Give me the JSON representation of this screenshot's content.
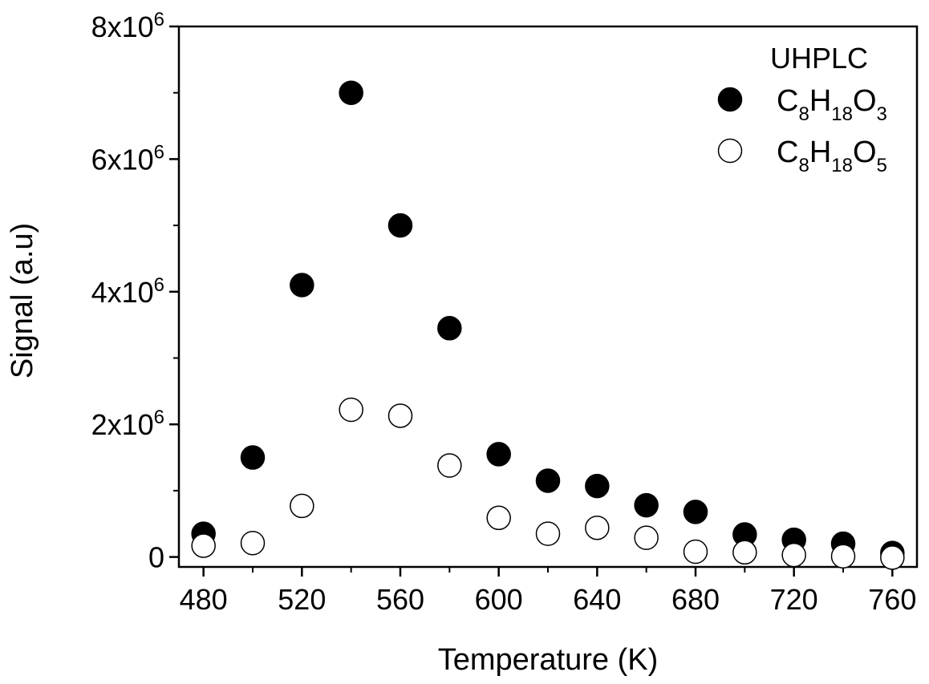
{
  "chart_data": {
    "type": "scatter",
    "xlabel": "Temperature (K)",
    "ylabel": "Signal (a.u)",
    "xlim": [
      470,
      770
    ],
    "ylim": [
      -150000,
      8000000
    ],
    "x_ticks": [
      480,
      520,
      560,
      600,
      640,
      680,
      720,
      760
    ],
    "y_ticks": [
      {
        "value": 0,
        "label": "0"
      },
      {
        "value": 2000000,
        "label": "2x10",
        "exp": "6"
      },
      {
        "value": 4000000,
        "label": "4x10",
        "exp": "6"
      },
      {
        "value": 6000000,
        "label": "6x10",
        "exp": "6"
      },
      {
        "value": 8000000,
        "label": "8x10",
        "exp": "6"
      }
    ],
    "legend": {
      "title": "UHPLC",
      "position": "top-right",
      "entries": [
        {
          "parts": [
            [
              "C",
              "normal"
            ],
            [
              "8",
              "sub"
            ],
            [
              "H",
              "normal"
            ],
            [
              "18",
              "sub"
            ],
            [
              "O",
              "normal"
            ],
            [
              "3",
              "sub"
            ]
          ],
          "marker": "filled"
        },
        {
          "parts": [
            [
              "C",
              "normal"
            ],
            [
              "8",
              "sub"
            ],
            [
              "H",
              "normal"
            ],
            [
              "18",
              "sub"
            ],
            [
              "O",
              "normal"
            ],
            [
              "5",
              "sub"
            ]
          ],
          "marker": "open"
        }
      ]
    },
    "series": [
      {
        "name": "C8H18O3",
        "marker": "filled",
        "color": "#000000",
        "x": [
          480,
          500,
          520,
          540,
          560,
          580,
          600,
          620,
          640,
          660,
          680,
          700,
          720,
          740,
          760
        ],
        "y": [
          350000,
          1500000,
          4100000,
          7000000,
          5000000,
          3450000,
          1550000,
          1150000,
          1070000,
          780000,
          680000,
          340000,
          260000,
          200000,
          60000
        ]
      },
      {
        "name": "C8H18O5",
        "marker": "open",
        "color": "#000000",
        "x": [
          480,
          500,
          520,
          540,
          560,
          580,
          600,
          620,
          640,
          660,
          680,
          700,
          720,
          740,
          760
        ],
        "y": [
          170000,
          210000,
          770000,
          2220000,
          2130000,
          1380000,
          590000,
          350000,
          440000,
          290000,
          80000,
          70000,
          30000,
          10000,
          -10000
        ]
      }
    ]
  }
}
